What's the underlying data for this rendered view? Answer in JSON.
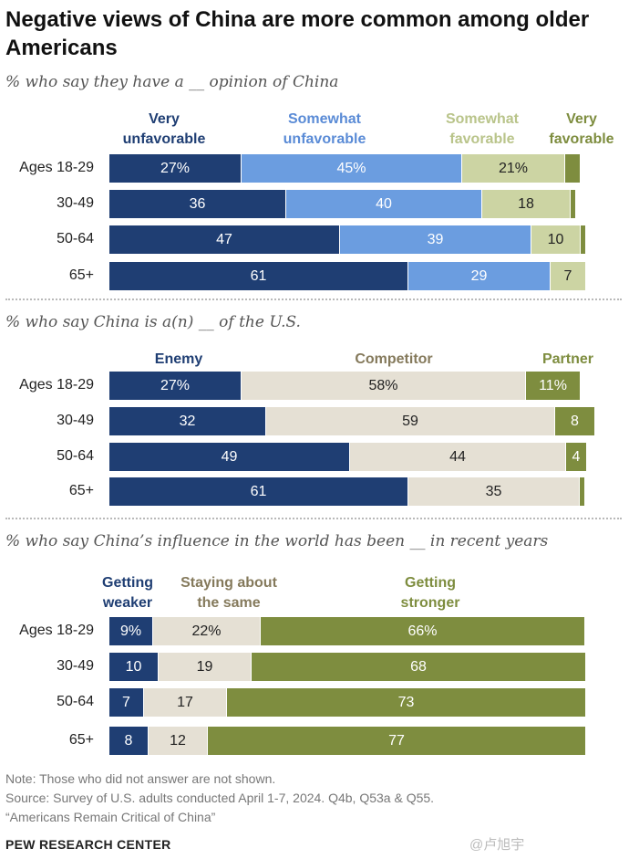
{
  "title": "Negative views of China are more common among older Americans",
  "notes": [
    "Note: Those who did not answer are not shown.",
    "Source: Survey of U.S. adults conducted April 1-7, 2024. Q4b, Q53a & Q55.",
    "“Americans Remain Critical of China”"
  ],
  "brand": "PEW RESEARCH CENTER",
  "watermark": "@卢旭宇",
  "colors": {
    "dark_blue": "#1f3e73",
    "mid_blue": "#6b9de0",
    "light_olive": "#ccd4a3",
    "olive": "#7e8d3f",
    "beige": "#e5e0d4"
  },
  "chart_data": [
    {
      "type": "bar",
      "orientation": "horizontal-stacked",
      "subtitle": "% who say they have a __ opinion of China",
      "categories": [
        "Ages 18-29",
        "30-49",
        "50-64",
        "65+"
      ],
      "series": [
        {
          "name": "Very unfavorable",
          "values": [
            27,
            36,
            47,
            61
          ],
          "color": "#1f3e73",
          "text_color": "#ffffff"
        },
        {
          "name": "Somewhat unfavorable",
          "values": [
            45,
            40,
            39,
            29
          ],
          "color": "#6b9de0",
          "text_color": "#ffffff"
        },
        {
          "name": "Somewhat favorable",
          "values": [
            21,
            18,
            10,
            7
          ],
          "color": "#ccd4a3",
          "text_color": "#222222"
        },
        {
          "name": "Very favorable",
          "values": [
            3,
            1,
            1,
            0
          ],
          "color": "#7e8d3f",
          "text_color": "#ffffff"
        }
      ],
      "value_labels": [
        [
          "27%",
          "45%",
          "21%",
          ""
        ],
        [
          "36",
          "40",
          "18",
          ""
        ],
        [
          "47",
          "39",
          "10",
          ""
        ],
        [
          "61",
          "29",
          "7",
          ""
        ]
      ],
      "legend": [
        {
          "text": "Very unfavorable",
          "color": "#1f3e73"
        },
        {
          "text": "Somewhat unfavorable",
          "color": "#5a8bd6"
        },
        {
          "text": "Somewhat favorable",
          "color": "#b9c48a"
        },
        {
          "text": "Very favorable",
          "color": "#7e8d3f"
        }
      ]
    },
    {
      "type": "bar",
      "orientation": "horizontal-stacked",
      "subtitle": "% who say China is a(n) __ of the U.S.",
      "categories": [
        "Ages 18-29",
        "30-49",
        "50-64",
        "65+"
      ],
      "series": [
        {
          "name": "Enemy",
          "values": [
            27,
            32,
            49,
            61
          ],
          "color": "#1f3e73",
          "text_color": "#ffffff"
        },
        {
          "name": "Competitor",
          "values": [
            58,
            59,
            44,
            35
          ],
          "color": "#e5e0d4",
          "text_color": "#222222"
        },
        {
          "name": "Partner",
          "values": [
            11,
            8,
            4,
            1
          ],
          "color": "#7e8d3f",
          "text_color": "#ffffff"
        }
      ],
      "value_labels": [
        [
          "27%",
          "58%",
          "11%"
        ],
        [
          "32",
          "59",
          "8"
        ],
        [
          "49",
          "44",
          "4"
        ],
        [
          "61",
          "35",
          ""
        ]
      ],
      "legend": [
        {
          "text": "Enemy",
          "color": "#1f3e73"
        },
        {
          "text": "Competitor",
          "color": "#857a5c"
        },
        {
          "text": "Partner",
          "color": "#7e8d3f"
        }
      ]
    },
    {
      "type": "bar",
      "orientation": "horizontal-stacked",
      "subtitle": "% who say China’s influence in the world has been __ in recent years",
      "categories": [
        "Ages 18-29",
        "30-49",
        "50-64",
        "65+"
      ],
      "series": [
        {
          "name": "Getting weaker",
          "values": [
            9,
            10,
            7,
            8
          ],
          "color": "#1f3e73",
          "text_color": "#ffffff"
        },
        {
          "name": "Staying about the same",
          "values": [
            22,
            19,
            17,
            12
          ],
          "color": "#e5e0d4",
          "text_color": "#222222"
        },
        {
          "name": "Getting stronger",
          "values": [
            66,
            68,
            73,
            77
          ],
          "color": "#7e8d3f",
          "text_color": "#ffffff"
        }
      ],
      "value_labels": [
        [
          "9%",
          "22%",
          "66%"
        ],
        [
          "10",
          "19",
          "68"
        ],
        [
          "7",
          "17",
          "73"
        ],
        [
          "8",
          "12",
          "77"
        ]
      ],
      "legend": [
        {
          "text": "Getting weaker",
          "color": "#1f3e73"
        },
        {
          "text": "Staying about the same",
          "color": "#857a5c"
        },
        {
          "text": "Getting stronger",
          "color": "#7e8d3f"
        }
      ]
    }
  ]
}
